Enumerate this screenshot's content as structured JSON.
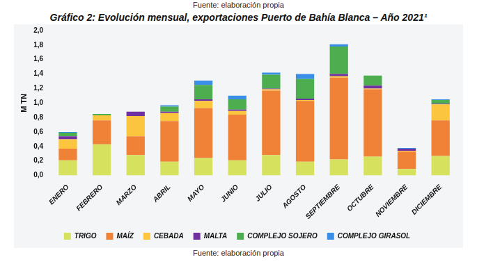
{
  "chart_data": {
    "type": "bar",
    "title": "Gráfico 2: Evolución mensual, exportaciones Puerto de Bahía Blanca – Año 2021¹",
    "annotations": [
      "Fuente: elaboración propia",
      "Fuente: elaboración propia"
    ],
    "y_label": "M TN",
    "categories": [
      "ENERO",
      "FEBRERO",
      "MARZO",
      "ABRIL",
      "MAYO",
      "JUNIO",
      "JULIO",
      "AGOSTO",
      "SEPTIEMBRE",
      "OCTUBRE",
      "NOVIEMBRE",
      "DICIEMBRE"
    ],
    "series": [
      {
        "name": "TRIGO",
        "color": "#d6e25e",
        "values": [
          0.21,
          0.43,
          0.28,
          0.19,
          0.24,
          0.21,
          0.28,
          0.19,
          0.22,
          0.26,
          0.09,
          0.27
        ]
      },
      {
        "name": "MAÍZ",
        "color": "#ef8236",
        "values": [
          0.16,
          0.33,
          0.26,
          0.56,
          0.69,
          0.63,
          0.89,
          0.84,
          1.13,
          0.93,
          0.24,
          0.49
        ]
      },
      {
        "name": "CEBADA",
        "color": "#fbc63e",
        "values": [
          0.13,
          0.07,
          0.28,
          0.11,
          0.1,
          0.05,
          0.02,
          0.01,
          0.02,
          0.01,
          0.01,
          0.22
        ]
      },
      {
        "name": "MALTA",
        "color": "#7030a0",
        "values": [
          0.04,
          0.0,
          0.06,
          0.02,
          0.02,
          0.02,
          0.01,
          0.02,
          0.03,
          0.04,
          0.03,
          0.01
        ]
      },
      {
        "name": "COMPLEJO SOJERO",
        "color": "#4cae4f",
        "values": [
          0.05,
          0.02,
          0.0,
          0.07,
          0.2,
          0.14,
          0.19,
          0.27,
          0.38,
          0.14,
          0.0,
          0.05
        ]
      },
      {
        "name": "COMPLEJO GIRASOL",
        "color": "#3a8ee6",
        "values": [
          0.01,
          0.0,
          0.0,
          0.02,
          0.06,
          0.05,
          0.03,
          0.07,
          0.03,
          0.0,
          0.01,
          0.01
        ]
      }
    ],
    "ylim": [
      0,
      2
    ],
    "yticks": [
      {
        "value": 0,
        "label": "0,0"
      },
      {
        "value": 0.2,
        "label": "0,2"
      },
      {
        "value": 0.4,
        "label": "0,4"
      },
      {
        "value": 0.6,
        "label": "0,6"
      },
      {
        "value": 0.8,
        "label": "0,8"
      },
      {
        "value": 1,
        "label": "1,0"
      },
      {
        "value": 1.2,
        "label": "1,2"
      },
      {
        "value": 1.4,
        "label": "1,4"
      },
      {
        "value": 1.6,
        "label": "1,6"
      },
      {
        "value": 1.8,
        "label": "1,8"
      },
      {
        "value": 2,
        "label": "2,0"
      }
    ],
    "stacked": true,
    "grid": false,
    "legend": "bottom",
    "data_labels": false
  }
}
